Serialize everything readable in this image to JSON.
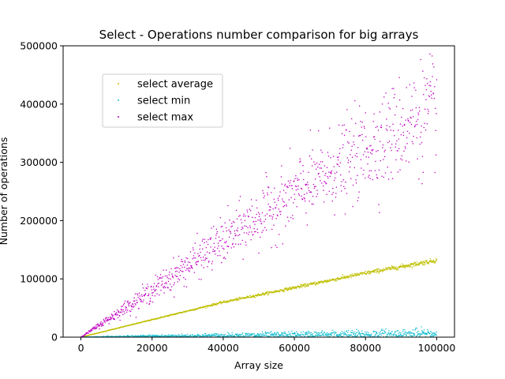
{
  "chart_data": {
    "type": "scatter",
    "title": "Select  - Operations number comparison for big arrays",
    "xlabel": "Array size",
    "ylabel": "Number of operations",
    "xlim": [
      -5000,
      105000
    ],
    "ylim": [
      0,
      500000
    ],
    "xticks": [
      0,
      20000,
      40000,
      60000,
      80000,
      100000
    ],
    "yticks": [
      0,
      100000,
      200000,
      300000,
      400000,
      500000
    ],
    "xtick_labels": [
      "0",
      "20000",
      "40000",
      "60000",
      "80000",
      "100000"
    ],
    "ytick_labels": [
      "0",
      "100000",
      "200000",
      "300000",
      "400000",
      "500000"
    ],
    "grid": false,
    "legend_position": "upper-left",
    "series": [
      {
        "name": "select average",
        "color": "#bfbf00",
        "x_range": [
          100,
          100000
        ],
        "y_trend": [
          {
            "x": 0,
            "y": 0
          },
          {
            "x": 20000,
            "y": 30000
          },
          {
            "x": 40000,
            "y": 60000
          },
          {
            "x": 60000,
            "y": 85000
          },
          {
            "x": 80000,
            "y": 110000
          },
          {
            "x": 100000,
            "y": 132000
          }
        ],
        "spread_fraction": 0.03
      },
      {
        "name": "select min",
        "color": "#17becf",
        "x_range": [
          100,
          100000
        ],
        "y_trend": [
          {
            "x": 0,
            "y": 0
          },
          {
            "x": 20000,
            "y": 1500
          },
          {
            "x": 40000,
            "y": 2500
          },
          {
            "x": 60000,
            "y": 3500
          },
          {
            "x": 80000,
            "y": 4500
          },
          {
            "x": 100000,
            "y": 5500
          }
        ],
        "spread_fraction": 0.9
      },
      {
        "name": "select max",
        "color": "#bf00bf",
        "x_range": [
          100,
          100000
        ],
        "y_trend": [
          {
            "x": 0,
            "y": 0
          },
          {
            "x": 20000,
            "y": 80000
          },
          {
            "x": 40000,
            "y": 165000
          },
          {
            "x": 60000,
            "y": 245000
          },
          {
            "x": 80000,
            "y": 320000
          },
          {
            "x": 100000,
            "y": 395000
          }
        ],
        "spread_fraction": 0.12
      }
    ]
  }
}
